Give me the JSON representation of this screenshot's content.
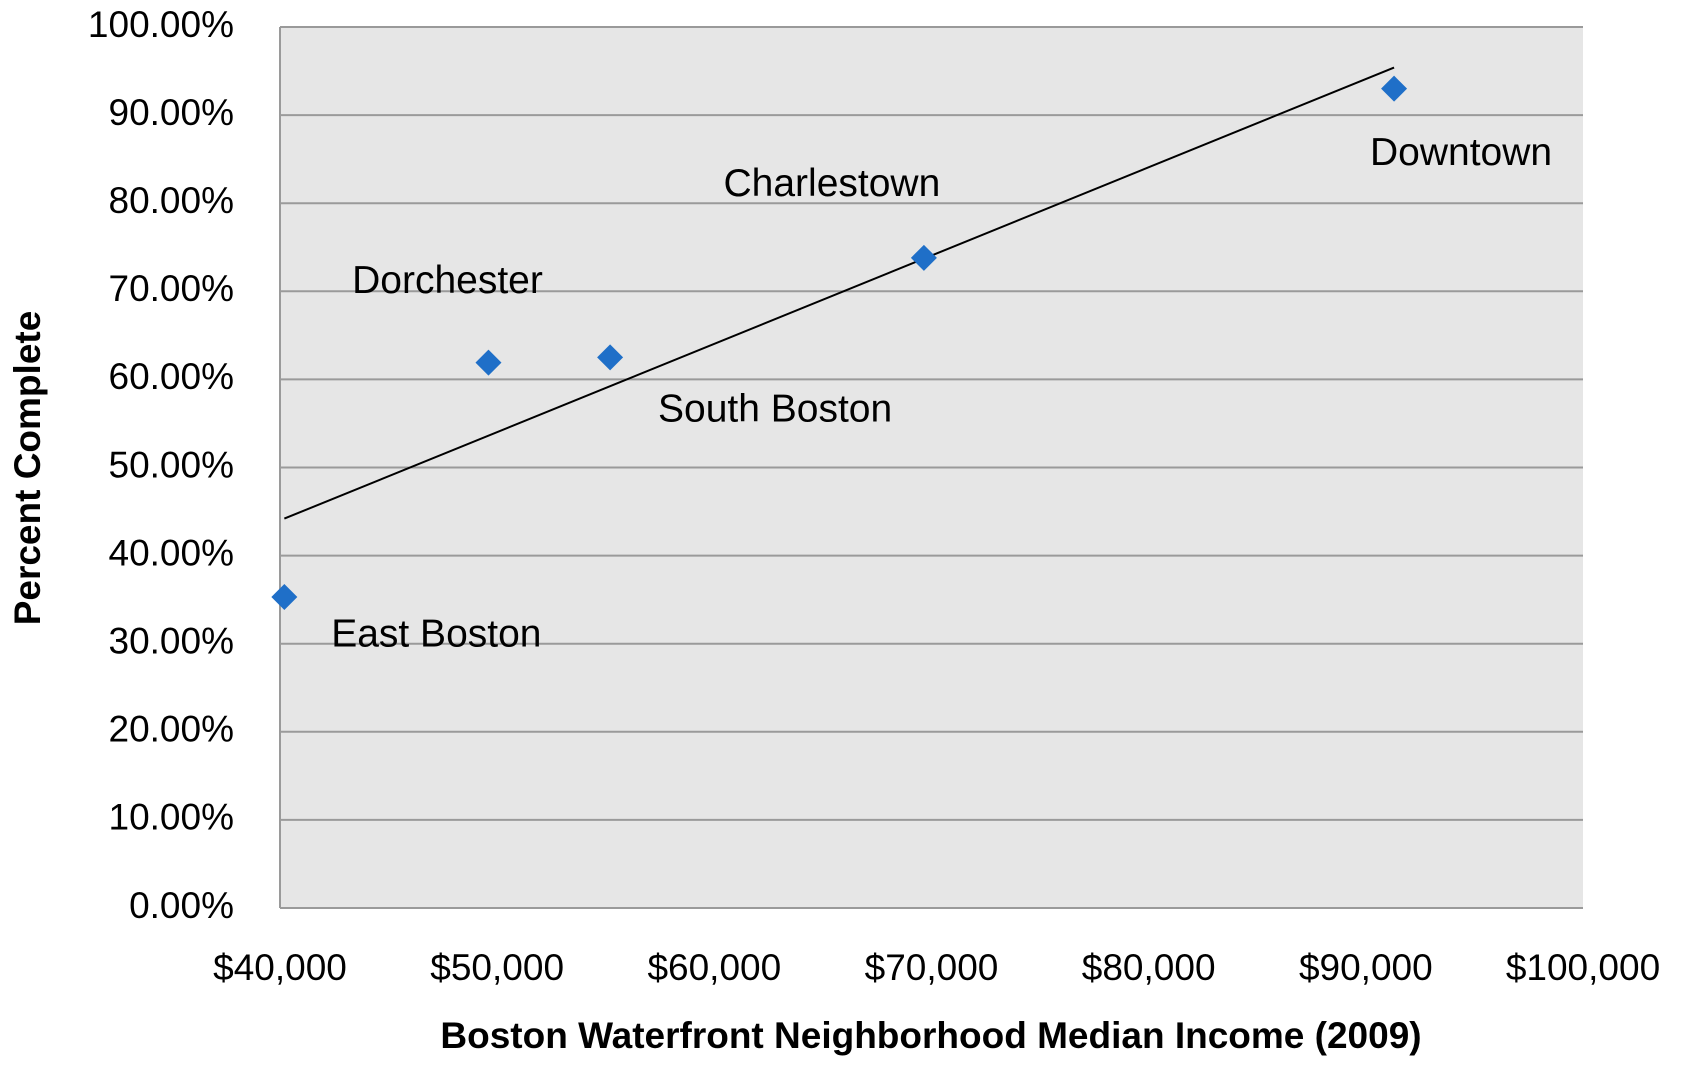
{
  "chart_data": {
    "type": "scatter",
    "x_label": "Boston Waterfront Neighborhood Median Income (2009)",
    "y_label": "Percent Complete",
    "series": [
      {
        "color": "#1f6fc8",
        "labels": [
          "East Boston",
          "Dorchester",
          "South Boston",
          "Charlestown",
          "Downtown"
        ],
        "x": [
          40200,
          49600,
          55200,
          69650,
          91300
        ],
        "values": [
          35.3,
          61.9,
          62.5,
          73.8,
          93.0
        ]
      }
    ],
    "trendline": {
      "color": "#000000",
      "x": [
        40200,
        91300
      ],
      "values": [
        44.2,
        95.4
      ]
    },
    "xlim": [
      40000,
      100000
    ],
    "xticks": [
      {
        "value": 40000,
        "label": "$40,000"
      },
      {
        "value": 50000,
        "label": "$50,000"
      },
      {
        "value": 60000,
        "label": "$60,000"
      },
      {
        "value": 70000,
        "label": "$70,000"
      },
      {
        "value": 80000,
        "label": "$80,000"
      },
      {
        "value": 90000,
        "label": "$90,000"
      },
      {
        "value": 100000,
        "label": "$100,000"
      }
    ],
    "ylim": [
      0,
      100
    ],
    "yticks": [
      {
        "value": 0,
        "label": "0.00%"
      },
      {
        "value": 10,
        "label": "10.00%"
      },
      {
        "value": 20,
        "label": "20.00%"
      },
      {
        "value": 30,
        "label": "30.00%"
      },
      {
        "value": 40,
        "label": "40.00%"
      },
      {
        "value": 50,
        "label": "50.00%"
      },
      {
        "value": 60,
        "label": "60.00%"
      },
      {
        "value": 70,
        "label": "70.00%"
      },
      {
        "value": 80,
        "label": "80.00%"
      },
      {
        "value": 90,
        "label": "90.00%"
      },
      {
        "value": 100,
        "label": "100.00%"
      }
    ],
    "grid": true
  }
}
